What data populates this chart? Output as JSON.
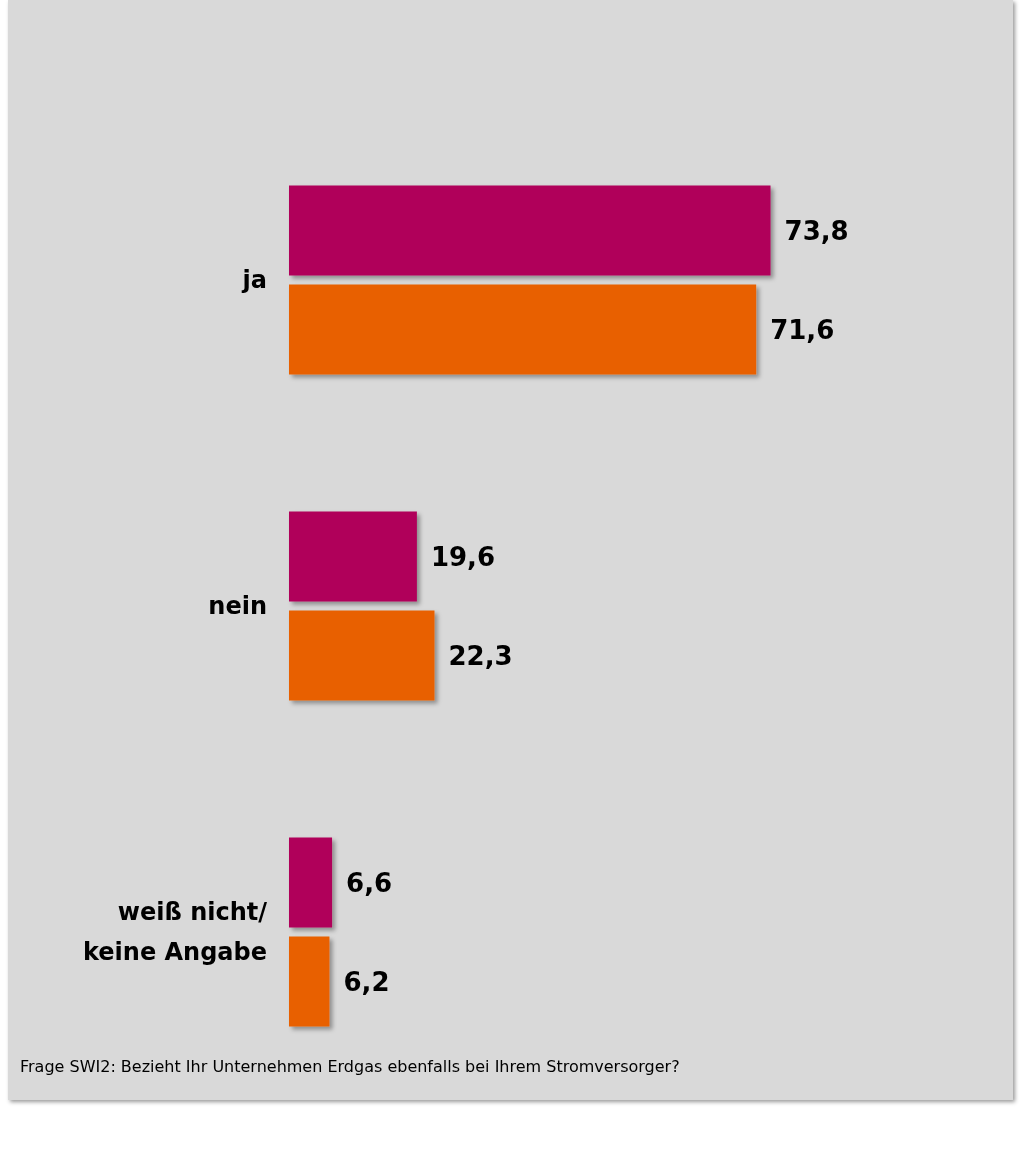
{
  "chart_data": {
    "type": "bar",
    "orientation": "horizontal",
    "categories": [
      "ja",
      "nein",
      "weiß nicht/\nkeine Angabe"
    ],
    "series": [
      {
        "color": "#b0005a",
        "values": [
          73.8,
          19.6,
          6.6
        ],
        "value_labels": [
          "73,8",
          "19,6",
          "6,6"
        ]
      },
      {
        "color": "#e86000",
        "values": [
          71.6,
          22.3,
          6.2
        ],
        "value_labels": [
          "71,6",
          "22,3",
          "6,2"
        ]
      }
    ],
    "annotations": [
      "Frage SWI2: Bezieht Ihr Unternehmen Erdgas ebenfalls bei Ihrem Stromversorger?"
    ]
  }
}
